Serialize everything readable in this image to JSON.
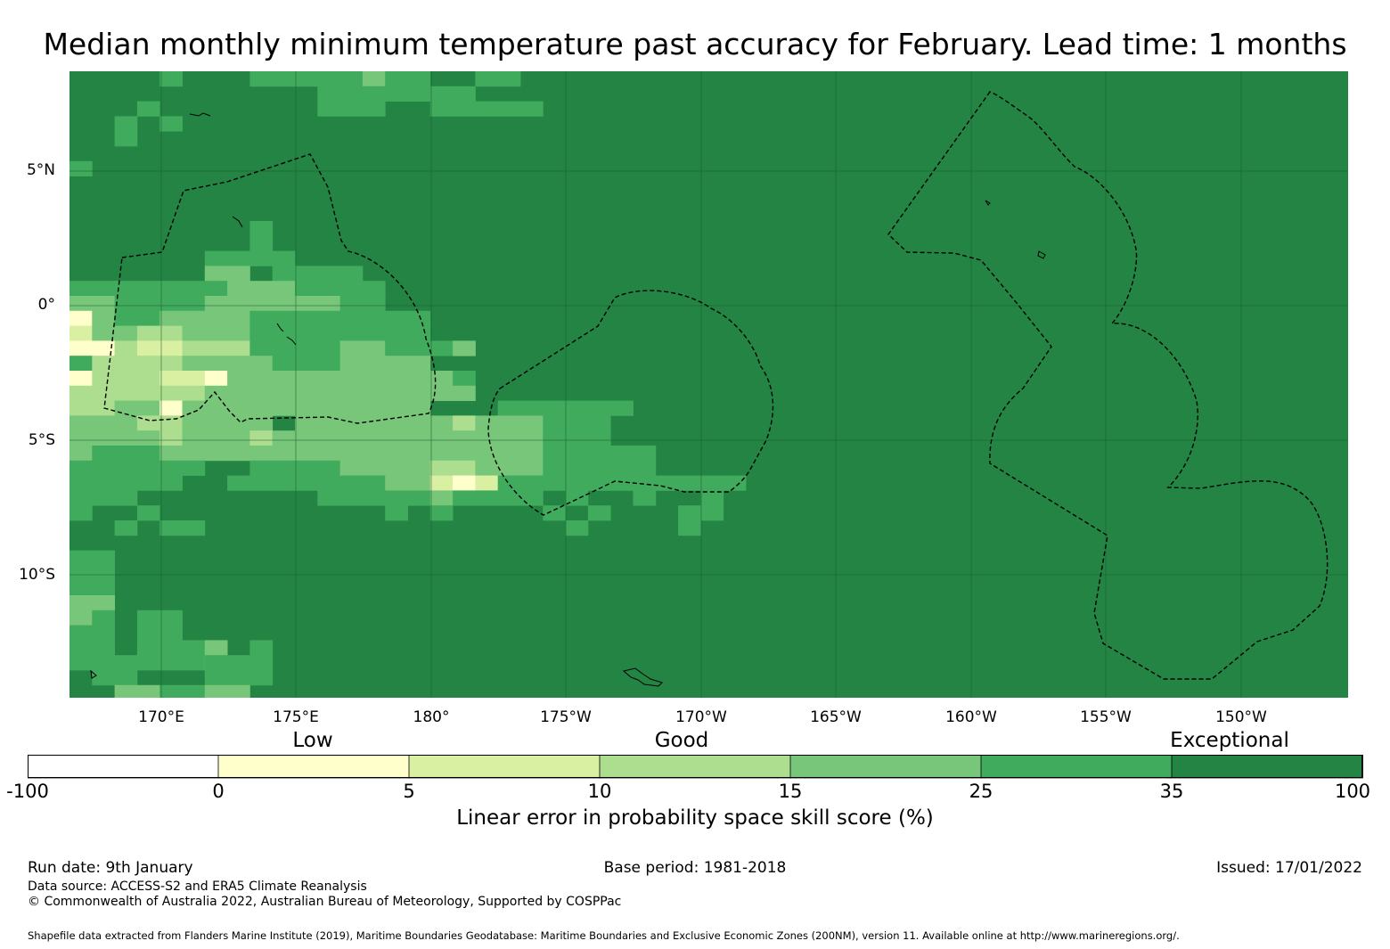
{
  "title": "Median monthly minimum temperature past accuracy for February. Lead time: 1 months",
  "map": {
    "description_free": true,
    "colors": {
      "ocean_exceptional": "#238443",
      "c25_35": "#41ab5d",
      "c15_25": "#78c679",
      "c10_15": "#addd8e",
      "c5_10": "#d9f0a3",
      "c0_5": "#ffffcc",
      "neg": "#ffffff"
    },
    "lat_labels": [
      "5°N",
      "0°",
      "5°S",
      "10°S"
    ],
    "lon_labels": [
      "170°E",
      "175°E",
      "180°",
      "175°W",
      "170°W",
      "165°W",
      "160°W",
      "155°W",
      "150°W"
    ]
  },
  "colorbar": {
    "categories": [
      "Low",
      "Good",
      "Exceptional"
    ],
    "ticks": [
      "-100",
      "0",
      "5",
      "10",
      "15",
      "25",
      "35",
      "100"
    ],
    "colors": [
      "#ffffff",
      "#ffffcc",
      "#d9f0a3",
      "#addd8e",
      "#78c679",
      "#41ab5d",
      "#238443"
    ],
    "label": "Linear error in probability space skill score (%)"
  },
  "footer": {
    "run_date": "Run date: 9th January",
    "base_period": "Base period: 1981-2018",
    "issued": "Issued: 17/01/2022",
    "data_source": "Data source: ACCESS-S2 and ERA5 Climate Reanalysis",
    "copyright": "© Commonwealth of Australia 2022, Australian Bureau of Meteorology, Supported by COSPPac",
    "shapefile": "Shapefile data extracted from Flanders Marine Institute (2019), Maritime Boundaries Geodatabase: Maritime Boundaries and Exclusive Economic Zones (200NM), version 11. Available online at http://www.marineregions.org/."
  }
}
